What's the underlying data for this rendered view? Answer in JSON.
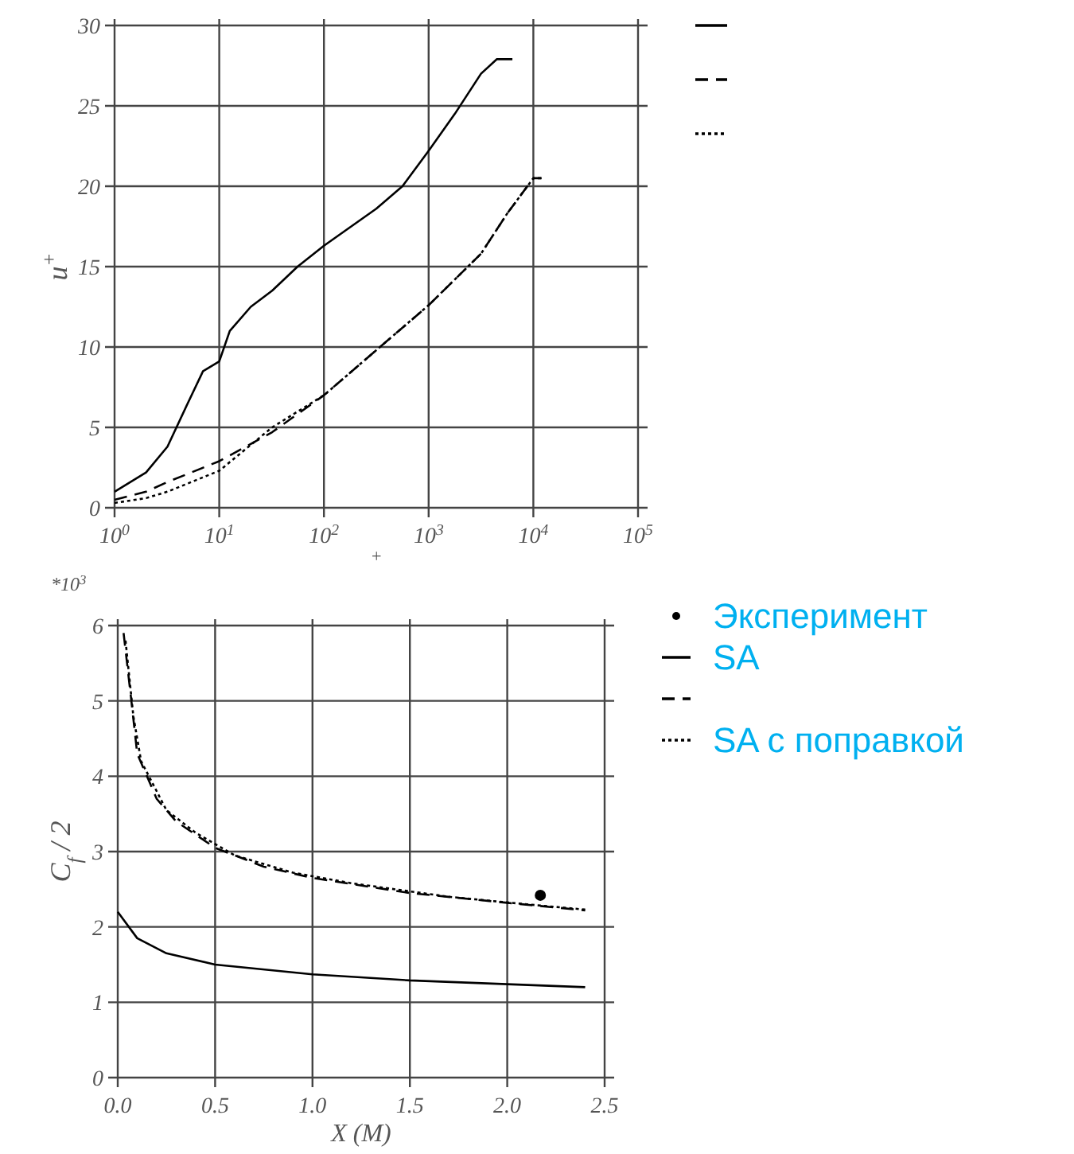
{
  "chart_data": [
    {
      "type": "line",
      "ylabel": "u$^{+}$",
      "xlabel": "$^{+}$",
      "log": "x",
      "xlim": [
        1,
        100000
      ],
      "xticks": [
        {
          "value": 1,
          "label": "10$^{0}$"
        },
        {
          "value": 10,
          "label": "10$^{1}$"
        },
        {
          "value": 100,
          "label": "10$^{2}$"
        },
        {
          "value": 1000,
          "label": "10$^{3}$"
        },
        {
          "value": 10000,
          "label": "10$^{4}$"
        },
        {
          "value": 100000,
          "label": "10$^{5}$"
        }
      ],
      "ylim": [
        0,
        30
      ],
      "yticks": [
        0,
        5,
        10,
        15,
        20,
        25,
        30
      ],
      "grid": true,
      "legend": "top right",
      "series": [
        {
          "color": "#000000",
          "line_style": "solid",
          "x": [
            1,
            2,
            3.2,
            5,
            7,
            10,
            12.6,
            20,
            32,
            56,
            100,
            316,
            562,
            1000,
            1778,
            3162,
            4467,
            6310
          ],
          "values": [
            1.0,
            2.2,
            3.8,
            6.5,
            8.5,
            9.1,
            11,
            12.5,
            13.5,
            15,
            16.3,
            18.6,
            20,
            22.2,
            24.5,
            27,
            27.9,
            27.9
          ]
        },
        {
          "color": "#000000",
          "line_style": "dashed",
          "x": [
            1,
            2,
            3.2,
            10,
            32,
            100,
            316,
            1000,
            3162,
            5623,
            10000,
            12000
          ],
          "values": [
            0.5,
            1.0,
            1.6,
            2.9,
            4.7,
            7.0,
            9.8,
            12.6,
            15.8,
            18.3,
            20.5,
            20.5
          ]
        },
        {
          "color": "#000000",
          "line_style": "dotted",
          "x": [
            1,
            2,
            3.2,
            10,
            32,
            100,
            316,
            1000,
            3162,
            5623,
            10000,
            12000
          ],
          "values": [
            0.3,
            0.6,
            1.0,
            2.3,
            5.0,
            7.0,
            9.8,
            12.6,
            15.8,
            18.3,
            20.5,
            20.5
          ]
        }
      ]
    },
    {
      "type": "line",
      "ylabel": "C$_{f}$ / 2",
      "xlabel": "X (M)",
      "annotations": [
        "*10$^{3}$"
      ],
      "xlim": [
        0,
        2.5
      ],
      "xticks": [
        {
          "value": 0,
          "label": "0.0"
        },
        0.5,
        {
          "value": 1,
          "label": "1.0"
        },
        1.5,
        {
          "value": 2,
          "label": "2.0"
        },
        2.5
      ],
      "ylim": [
        0,
        6
      ],
      "yticks": [
        0,
        1,
        2,
        3,
        4,
        5,
        6
      ],
      "grid": true,
      "legend": "right",
      "series": [
        {
          "name": "Эксперимент",
          "type": "scatter",
          "marker": "circle",
          "color": "#000000",
          "x": [
            2.17
          ],
          "values": [
            2.42
          ]
        },
        {
          "name": "SA",
          "color": "#000000",
          "line_style": "solid",
          "x": [
            0,
            0.1,
            0.25,
            0.5,
            1.0,
            1.5,
            2.0,
            2.4
          ],
          "values": [
            2.2,
            1.85,
            1.65,
            1.5,
            1.37,
            1.29,
            1.24,
            1.2
          ]
        },
        {
          "color": "#000000",
          "line_style": "dashed",
          "x": [
            0.03,
            0.07,
            0.1,
            0.2,
            0.3,
            0.5,
            0.75,
            1.0,
            1.5,
            2.0,
            2.4
          ],
          "values": [
            5.9,
            5.0,
            4.3,
            3.7,
            3.4,
            3.05,
            2.8,
            2.65,
            2.45,
            2.32,
            2.22
          ]
        },
        {
          "name": "SA с поправкой",
          "color": "#000000",
          "line_style": "dotted",
          "x": [
            0.04,
            0.08,
            0.12,
            0.25,
            0.4,
            0.6,
            0.9,
            1.2,
            1.7,
            2.1,
            2.4
          ],
          "values": [
            5.8,
            4.8,
            4.2,
            3.55,
            3.25,
            2.95,
            2.72,
            2.58,
            2.4,
            2.3,
            2.23
          ]
        }
      ]
    }
  ]
}
